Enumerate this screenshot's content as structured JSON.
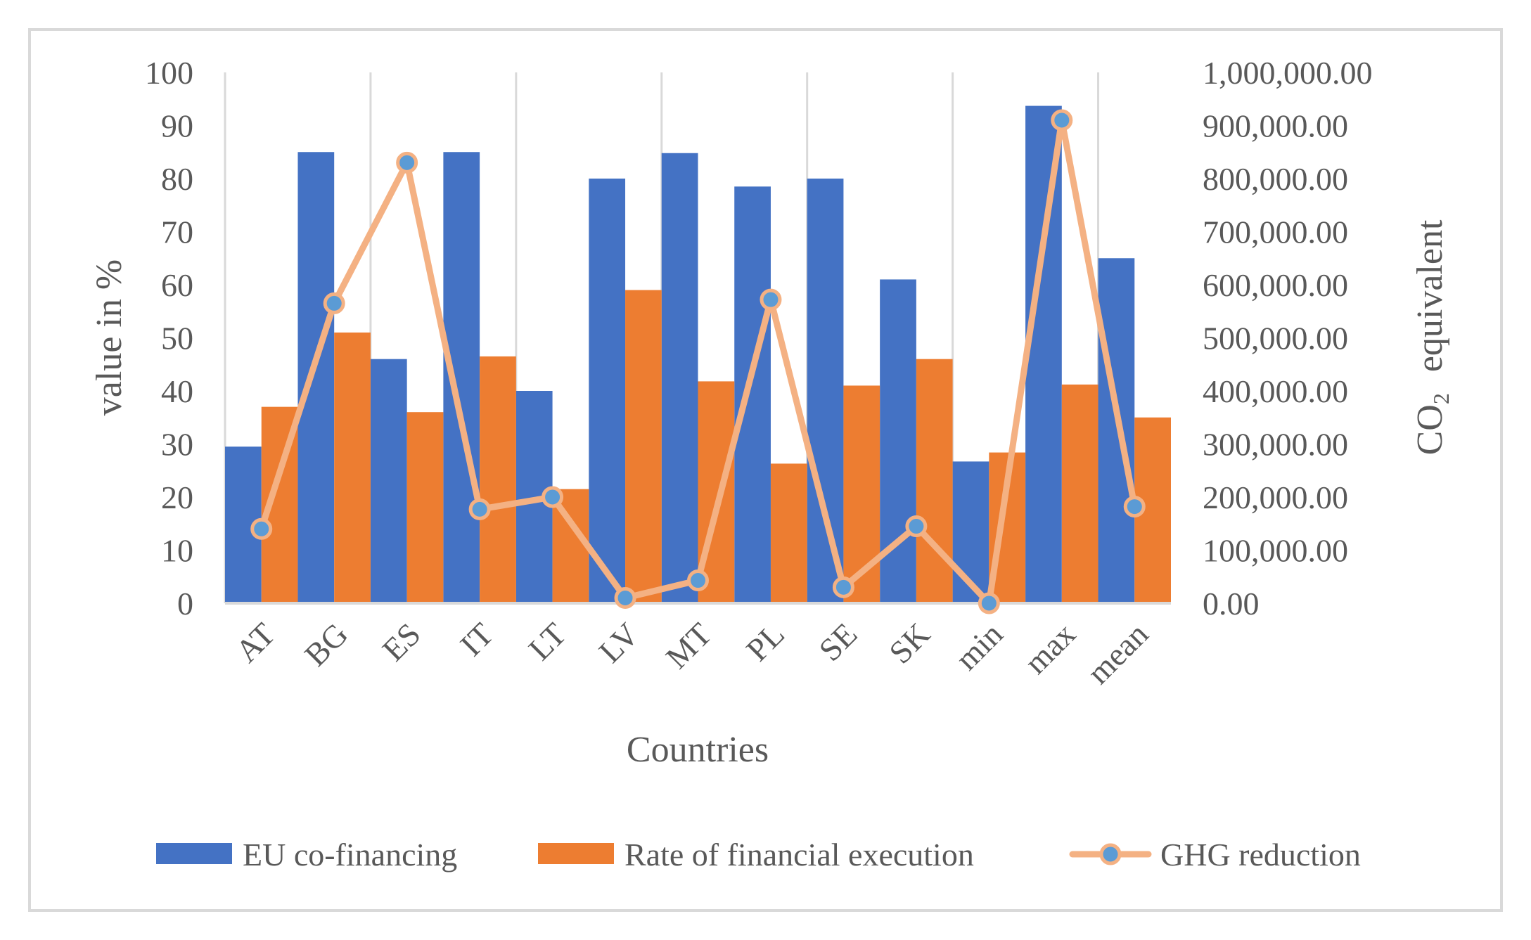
{
  "chart_data": {
    "type": "bar",
    "categories": [
      "AT",
      "BG",
      "ES",
      "IT",
      "LT",
      "LV",
      "MT",
      "PL",
      "SE",
      "SK",
      "min",
      "max",
      "mean"
    ],
    "series": [
      {
        "name": "EU co-financing",
        "kind": "bar",
        "axis": "left",
        "color": "#4472C4",
        "values": [
          29.5,
          85,
          46,
          85,
          40,
          80,
          84.8,
          78.5,
          80,
          61,
          26.7,
          93.7,
          65
        ]
      },
      {
        "name": "Rate of financial execution",
        "kind": "bar",
        "axis": "left",
        "color": "#ED7D31",
        "values": [
          37,
          51,
          36,
          46.5,
          21.5,
          59,
          41.8,
          26.3,
          41,
          46,
          28.4,
          41.2,
          35
        ]
      },
      {
        "name": "GHG reduction",
        "kind": "line",
        "axis": "right",
        "color": "#F4B183",
        "marker_color": "#5B9BD5",
        "values": [
          140000,
          565000,
          830000,
          177000,
          200000,
          10000,
          43000,
          572000,
          30000,
          145000,
          0,
          910000,
          182000
        ]
      }
    ],
    "xlabel": "Countries",
    "ylabel": "value in %",
    "y2label_main": "CO",
    "y2label_sub": "2",
    "y2label_rest": "equivalent",
    "ylim": [
      0,
      100
    ],
    "y2lim": [
      0,
      1000000
    ],
    "yticks": [
      "0",
      "10",
      "20",
      "30",
      "40",
      "50",
      "60",
      "70",
      "80",
      "90",
      "100"
    ],
    "y2ticks": [
      "0.00",
      "100,000.00",
      "200,000.00",
      "300,000.00",
      "400,000.00",
      "500,000.00",
      "600,000.00",
      "700,000.00",
      "800,000.00",
      "900,000.00",
      "1,000,000.00"
    ],
    "grid": "vertical",
    "legend": "bottom"
  }
}
